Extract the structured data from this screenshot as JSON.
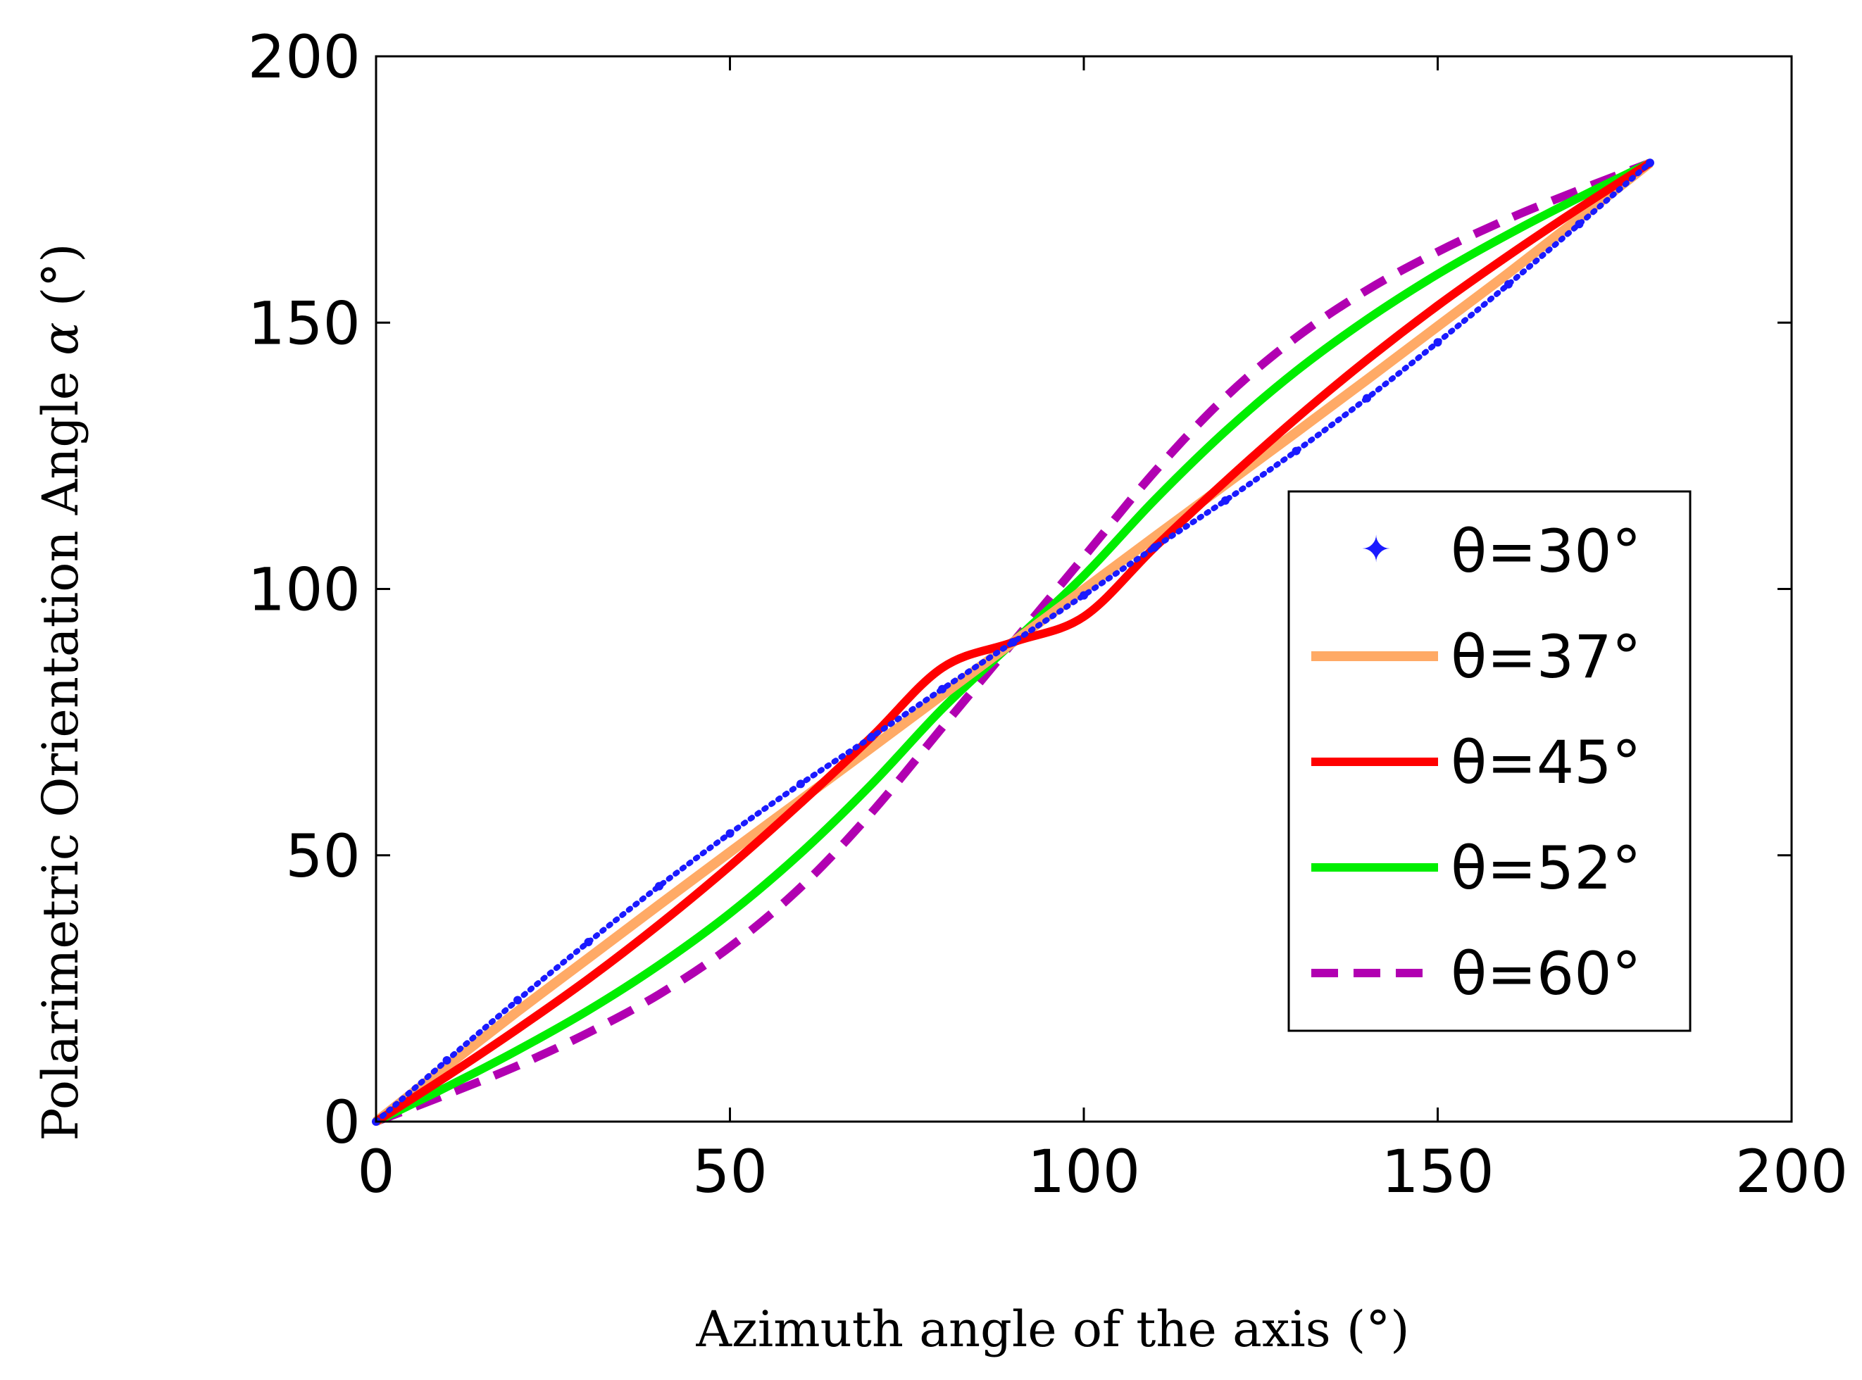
{
  "chart_data": {
    "type": "line",
    "title": "",
    "xlabel": "Azimuth angle of the axis (°)",
    "ylabel_prefix": "Polarimetric Orientation Angle ",
    "ylabel_symbol": "α",
    "ylabel_suffix": " (°)",
    "xlim": [
      0,
      200
    ],
    "ylim": [
      0,
      200
    ],
    "xticks": [
      0,
      50,
      100,
      150,
      200
    ],
    "yticks": [
      0,
      50,
      100,
      150,
      200
    ],
    "xtick_labels": [
      "0",
      "50",
      "100",
      "150",
      "200"
    ],
    "ytick_labels": [
      "0",
      "50",
      "100",
      "150",
      "200"
    ],
    "grid": false,
    "legend_position": "right",
    "series": [
      {
        "name": "θ=30°",
        "theta_deg": 30,
        "style": "dotted",
        "color": "#1a1aff",
        "x": [
          0,
          10,
          20,
          30,
          40,
          50,
          60,
          70,
          80,
          90,
          100,
          110,
          120,
          130,
          140,
          150,
          160,
          170,
          180
        ],
        "values": [
          0,
          11.5,
          22.8,
          33.7,
          44.2,
          54.1,
          63.4,
          72.2,
          81.2,
          90,
          98.8,
          107.8,
          116.6,
          125.9,
          135.8,
          146.3,
          157.2,
          168.5,
          180
        ]
      },
      {
        "name": "θ=37°",
        "theta_deg": 37,
        "style": "solid",
        "color": "#ffaa66",
        "x": [
          0,
          10,
          20,
          30,
          40,
          50,
          60,
          70,
          80,
          90,
          100,
          110,
          120,
          130,
          140,
          150,
          160,
          170,
          180
        ],
        "values": [
          0,
          10.4,
          20.7,
          30.7,
          40.7,
          50.6,
          60.4,
          70.2,
          80.1,
          90,
          99.9,
          109.8,
          119.6,
          129.4,
          139.3,
          149.3,
          159.3,
          169.6,
          180
        ]
      },
      {
        "name": "θ=45°",
        "theta_deg": 45,
        "style": "solid",
        "color": "#ff0000",
        "x": [
          0,
          10,
          20,
          30,
          40,
          50,
          60,
          70,
          80,
          90,
          100,
          110,
          120,
          130,
          140,
          150,
          160,
          170,
          180
        ],
        "values": [
          0,
          8.5,
          17.4,
          26.8,
          37,
          48,
          59.8,
          72.2,
          85.2,
          90,
          94.8,
          107.8,
          120.2,
          132,
          143,
          153.2,
          162.6,
          171.5,
          180
        ]
      },
      {
        "name": "θ=52°",
        "theta_deg": 52,
        "style": "solid",
        "color": "#00ee00",
        "x": [
          0,
          10,
          20,
          30,
          40,
          50,
          60,
          70,
          80,
          90,
          100,
          110,
          120,
          130,
          140,
          150,
          160,
          170,
          180
        ],
        "values": [
          0,
          6.5,
          13.4,
          20.9,
          29.4,
          39.1,
          50.4,
          63.3,
          77.5,
          90,
          102.5,
          116.7,
          129.6,
          140.9,
          150.6,
          159.1,
          166.6,
          173.5,
          180
        ]
      },
      {
        "name": "θ=60°",
        "theta_deg": 60,
        "style": "dashed",
        "color": "#b100b1",
        "x": [
          0,
          10,
          20,
          30,
          40,
          50,
          60,
          70,
          80,
          90,
          100,
          110,
          120,
          130,
          140,
          150,
          160,
          170,
          180
        ],
        "values": [
          0,
          5.1,
          10.5,
          16.7,
          23.9,
          32.8,
          44,
          58,
          74,
          90,
          106,
          122,
          136,
          147.2,
          156.1,
          163.3,
          169.5,
          174.9,
          180
        ]
      }
    ]
  }
}
